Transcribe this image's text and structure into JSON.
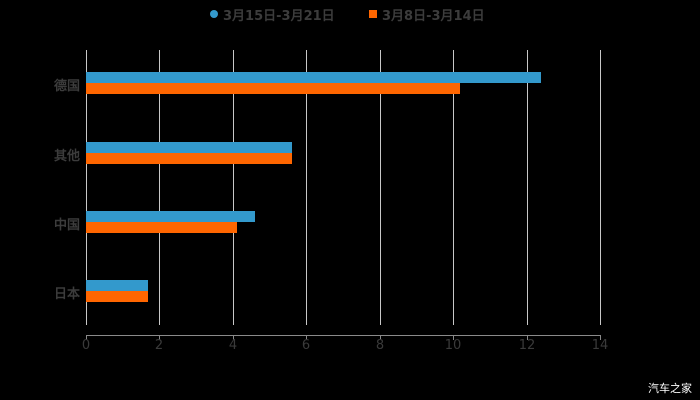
{
  "chart_data": {
    "type": "bar",
    "orientation": "horizontal",
    "title": "",
    "categories": [
      "德国",
      "其他",
      "中国",
      "日本"
    ],
    "series": [
      {
        "name": "3月15日-3月21日",
        "color": "#3399cc",
        "marker": "circle",
        "values": [
          12.4,
          5.6,
          4.6,
          1.7
        ]
      },
      {
        "name": "3月8日-3月14日",
        "color": "#ff6600",
        "marker": "square",
        "values": [
          10.2,
          5.6,
          4.1,
          1.7
        ]
      }
    ],
    "xlabel": "",
    "ylabel": "",
    "xlim": [
      0,
      14
    ],
    "xticks": [
      "0",
      "2",
      "4",
      "6",
      "8",
      "10",
      "12",
      "14"
    ],
    "grid": true,
    "legend_position": "top"
  },
  "legend": [
    {
      "label": "3月15日-3月21日",
      "color": "#3399cc"
    },
    {
      "label": "3月8日-3月14日",
      "color": "#ff6600"
    }
  ],
  "watermark": "汽车之家"
}
